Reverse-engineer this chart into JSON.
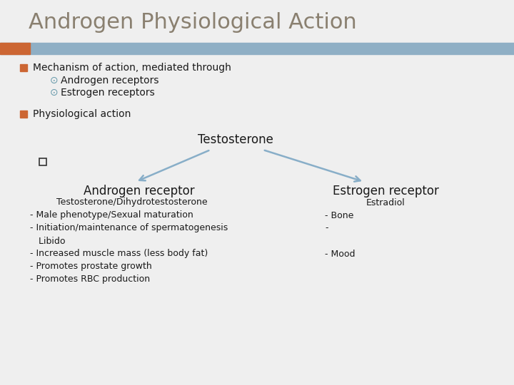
{
  "title": "Androgen Physiological Action",
  "title_color": "#8a8070",
  "title_fontsize": 22,
  "bg_color": "#efefef",
  "header_bar_color": "#8fafc5",
  "header_bar_orange": "#cc6633",
  "bullet1_text": "Mechanism of action, mediated through",
  "bullet1_sub1": "Androgen receptors",
  "bullet1_sub2": "Estrogen receptors",
  "bullet2_text": "Physiological action",
  "testosterone_label": "Testosterone",
  "androgen_receptor_label": "Androgen receptor",
  "estrogen_receptor_label": "Estrogen receptor",
  "andro_ligand": "Testosterone/Dihydrotestosterone",
  "estro_ligand": "Estradiol",
  "andro_effects": [
    "- Male phenotype/Sexual maturation",
    "- Initiation/maintenance of spermatogenesis",
    "   Libido",
    "- Increased muscle mass (less body fat)",
    "- Promotes prostate growth",
    "- Promotes RBC production"
  ],
  "estro_effects": [
    "- Bone",
    "-",
    "",
    "- Mood",
    "",
    ""
  ],
  "arrow_color": "#88aec8",
  "text_color": "#1a1a1a",
  "body_fontsize": 10,
  "sub_fontsize": 10,
  "diagram_fontsize": 10
}
